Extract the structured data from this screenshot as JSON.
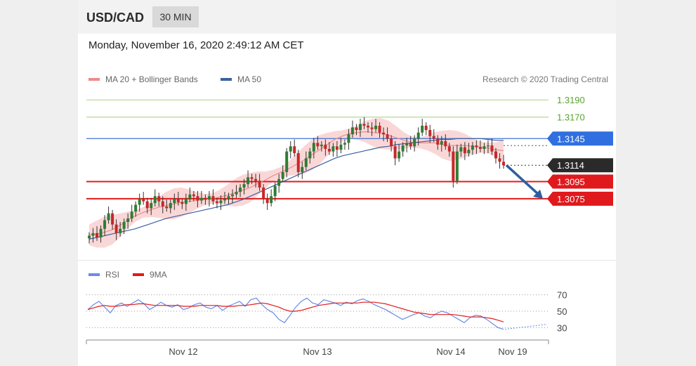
{
  "header": {
    "pair": "USD/CAD",
    "timeframe": "30 MIN"
  },
  "timestamp": "Monday, November 16, 2020 2:49:12 AM CET",
  "legend": {
    "ma20_label": "MA 20 + Bollinger Bands",
    "ma50_label": "MA 50"
  },
  "source": "Research © 2020 Trading Central",
  "colors": {
    "up": "#2e7d32",
    "down": "#c62828",
    "band": "#f8c9c9",
    "ma20": "#f08a8a",
    "ma50": "#3a62a0",
    "support": "#e31a1a",
    "resistance_line": "#b9dc9a",
    "pivot": "#3f74d6",
    "arrow": "#2c5f9e",
    "rsi": "#6b8be6",
    "rsi_ma": "#e31a1a"
  },
  "chart_data": [
    {
      "type": "candlestick",
      "title": "USD/CAD 30 MIN",
      "ylim": [
        1.3012,
        1.32
      ],
      "x_ticks": [
        "Nov 12",
        "Nov 13",
        "Nov 14",
        "Nov 19"
      ],
      "levels": [
        {
          "value": 1.319,
          "label": "1.3190",
          "kind": "resistance"
        },
        {
          "value": 1.317,
          "label": "1.3170",
          "kind": "resistance"
        },
        {
          "value": 1.3145,
          "label": "1.3145",
          "kind": "pivot"
        },
        {
          "value": 1.3114,
          "label": "1.3114",
          "kind": "last"
        },
        {
          "value": 1.3095,
          "label": "1.3095",
          "kind": "support"
        },
        {
          "value": 1.3075,
          "label": "1.3075",
          "kind": "support"
        }
      ],
      "closes": [
        1.3032,
        1.3035,
        1.303,
        1.304,
        1.305,
        1.3058,
        1.3045,
        1.3035,
        1.304,
        1.3048,
        1.3052,
        1.306,
        1.3068,
        1.3075,
        1.3072,
        1.3064,
        1.307,
        1.3078,
        1.3072,
        1.3066,
        1.3064,
        1.307,
        1.3075,
        1.3071,
        1.3069,
        1.3075,
        1.308,
        1.3078,
        1.3073,
        1.3076,
        1.3074,
        1.3078,
        1.3072,
        1.307,
        1.3073,
        1.3075,
        1.3078,
        1.308,
        1.3083,
        1.3088,
        1.3092,
        1.31,
        1.3098,
        1.3096,
        1.3088,
        1.3075,
        1.307,
        1.3078,
        1.309,
        1.3098,
        1.3106,
        1.313,
        1.3136,
        1.3128,
        1.3106,
        1.3112,
        1.3122,
        1.313,
        1.314,
        1.3136,
        1.3138,
        1.3133,
        1.313,
        1.3136,
        1.3132,
        1.3138,
        1.314,
        1.315,
        1.3158,
        1.3155,
        1.3162,
        1.316,
        1.3158,
        1.3156,
        1.316,
        1.3152,
        1.315,
        1.3145,
        1.3136,
        1.3122,
        1.313,
        1.3137,
        1.314,
        1.3136,
        1.3145,
        1.3152,
        1.316,
        1.3155,
        1.3148,
        1.3145,
        1.3138,
        1.3142,
        1.3136,
        1.313,
        1.3096,
        1.313,
        1.3135,
        1.3128,
        1.3132,
        1.3137,
        1.3135,
        1.3133,
        1.3136,
        1.3137,
        1.313,
        1.3122,
        1.3118,
        1.3114
      ],
      "ma20": [
        1.3033,
        1.3034,
        1.3036,
        1.3039,
        1.3044,
        1.305,
        1.3055,
        1.3059,
        1.3062,
        1.3065,
        1.3067,
        1.3069,
        1.3071,
        1.3072,
        1.3073,
        1.3074,
        1.3075,
        1.3077,
        1.3079,
        1.3082,
        1.3085,
        1.3088,
        1.3093,
        1.3097,
        1.3102,
        1.3106,
        1.311,
        1.3115,
        1.312,
        1.3126,
        1.3132,
        1.3138,
        1.3144,
        1.3148,
        1.3151,
        1.3152,
        1.3153,
        1.3152,
        1.3151,
        1.3149,
        1.3146,
        1.3143,
        1.3141,
        1.314,
        1.314,
        1.314,
        1.3138,
        1.3137,
        1.3137,
        1.3137,
        1.3136,
        1.3135,
        1.3134,
        1.3132,
        1.3131
      ],
      "ma50": [
        1.3028,
        1.303,
        1.3032,
        1.3034,
        1.3036,
        1.3038,
        1.304,
        1.3043,
        1.3046,
        1.3049,
        1.3052,
        1.3054,
        1.3056,
        1.3058,
        1.306,
        1.3062,
        1.3064,
        1.3066,
        1.3068,
        1.3071,
        1.3074,
        1.3078,
        1.3082,
        1.3086,
        1.309,
        1.3094,
        1.3098,
        1.3102,
        1.3106,
        1.311,
        1.3114,
        1.3118,
        1.3122,
        1.3125,
        1.3127,
        1.3129,
        1.3131,
        1.3133,
        1.3135,
        1.3136,
        1.3138,
        1.3139,
        1.314,
        1.3141,
        1.3142,
        1.3143,
        1.3144,
        1.3144,
        1.3145,
        1.3145,
        1.3145,
        1.3145,
        1.3144,
        1.3143,
        1.3143
      ],
      "band_width": 0.0012,
      "forecast_arrow": {
        "from": 1.3114,
        "to": 1.3075
      }
    },
    {
      "type": "line",
      "title": "RSI",
      "series_names": [
        "RSI",
        "9MA"
      ],
      "ylim": [
        20,
        80
      ],
      "y_ticks": [
        70,
        50,
        30
      ],
      "rsi": [
        52,
        58,
        62,
        55,
        48,
        57,
        60,
        56,
        60,
        64,
        59,
        52,
        56,
        61,
        57,
        55,
        58,
        52,
        54,
        58,
        60,
        55,
        53,
        57,
        51,
        56,
        59,
        62,
        56,
        64,
        66,
        58,
        52,
        48,
        40,
        36,
        45,
        55,
        62,
        66,
        60,
        58,
        64,
        62,
        60,
        57,
        61,
        59,
        63,
        65,
        62,
        58,
        55,
        52,
        48,
        44,
        40,
        43,
        46,
        48,
        44,
        42,
        47,
        50,
        48,
        44,
        40,
        36,
        42,
        45,
        44,
        40,
        35,
        30,
        28
      ],
      "rsi_ma": [
        52,
        54,
        56,
        57,
        56,
        56,
        57,
        58,
        58,
        59,
        59,
        58,
        57,
        57,
        57,
        57,
        57,
        56,
        56,
        56,
        57,
        57,
        57,
        57,
        56,
        56,
        56,
        57,
        57,
        58,
        59,
        60,
        59,
        57,
        55,
        52,
        50,
        50,
        51,
        53,
        55,
        57,
        58,
        59,
        60,
        60,
        60,
        60,
        60,
        61,
        61,
        61,
        60,
        59,
        57,
        55,
        53,
        51,
        49,
        48,
        47,
        46,
        46,
        46,
        46,
        46,
        45,
        44,
        43,
        43,
        43,
        42,
        41,
        39,
        37
      ]
    }
  ]
}
